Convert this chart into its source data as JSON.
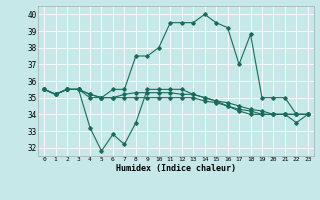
{
  "title": "",
  "xlabel": "Humidex (Indice chaleur)",
  "xlim": [
    -0.5,
    23.5
  ],
  "ylim": [
    31.5,
    40.5
  ],
  "yticks": [
    32,
    33,
    34,
    35,
    36,
    37,
    38,
    39,
    40
  ],
  "xticks": [
    0,
    1,
    2,
    3,
    4,
    5,
    6,
    7,
    8,
    9,
    10,
    11,
    12,
    13,
    14,
    15,
    16,
    17,
    18,
    19,
    20,
    21,
    22,
    23
  ],
  "background_color": "#c6e8e8",
  "grid_color": "#ffffff",
  "line_color": "#1a6b5a",
  "series": [
    [
      35.5,
      35.2,
      35.5,
      35.5,
      35.0,
      35.0,
      35.5,
      35.5,
      37.5,
      37.5,
      38.0,
      39.5,
      39.5,
      39.5,
      40.0,
      39.5,
      39.2,
      37.0,
      38.8,
      35.0,
      35.0,
      35.0,
      34.0,
      34.0
    ],
    [
      35.5,
      35.2,
      35.5,
      35.5,
      33.2,
      31.8,
      32.8,
      32.2,
      33.5,
      35.5,
      35.5,
      35.5,
      35.5,
      35.2,
      35.0,
      34.8,
      34.5,
      34.2,
      34.0,
      34.0,
      34.0,
      34.0,
      33.5,
      34.0
    ],
    [
      35.5,
      35.2,
      35.5,
      35.5,
      35.2,
      35.0,
      35.0,
      35.2,
      35.3,
      35.3,
      35.3,
      35.3,
      35.2,
      35.2,
      35.0,
      34.8,
      34.7,
      34.5,
      34.3,
      34.2,
      34.0,
      34.0,
      34.0,
      34.0
    ],
    [
      35.5,
      35.2,
      35.5,
      35.5,
      35.2,
      35.0,
      35.0,
      35.0,
      35.0,
      35.0,
      35.0,
      35.0,
      35.0,
      35.0,
      34.8,
      34.7,
      34.5,
      34.3,
      34.2,
      34.0,
      34.0,
      34.0,
      34.0,
      34.0
    ]
  ]
}
